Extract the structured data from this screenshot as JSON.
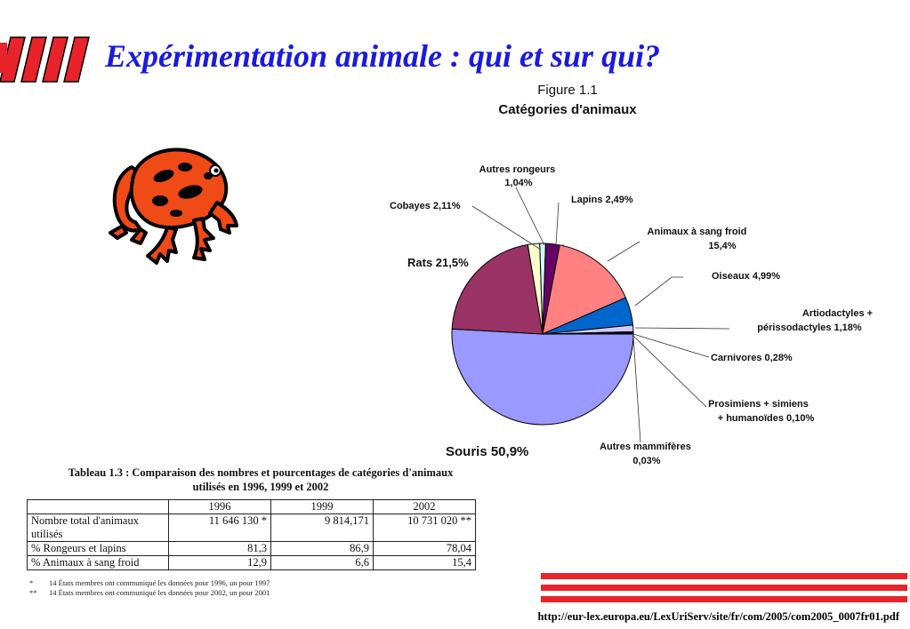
{
  "slide": {
    "title": "Expérimentation animale : qui et sur qui?",
    "source_url": "http://eur-lex.europa.eu/LexUriServ/site/fr/com/2005/com2005_0007fr01.pdf"
  },
  "colors": {
    "title": "#1a1ae0",
    "accent_red": "#e8232a"
  },
  "chart_data": {
    "type": "pie",
    "title": "Figure 1.1",
    "subtitle": "Catégories d'animaux",
    "slices": [
      {
        "label": "Souris 50,9%",
        "value": 50.9,
        "color": "#9999ff"
      },
      {
        "label": "Rats 21,5%",
        "value": 21.5,
        "color": "#993366"
      },
      {
        "label": "Cobayes 2,11%",
        "value": 2.11,
        "color": "#ffffcc"
      },
      {
        "label": "Autres rongeurs 1,04%",
        "value": 1.04,
        "color": "#ccffff"
      },
      {
        "label": "Lapins 2,49%",
        "value": 2.49,
        "color": "#660066"
      },
      {
        "label": "Animaux à sang froid 15,4%",
        "value": 15.4,
        "color": "#ff8080"
      },
      {
        "label": "Oiseaux 4,99%",
        "value": 4.99,
        "color": "#0066cc"
      },
      {
        "label": "Artiodactyles + périssodactyles 1,18%",
        "value": 1.18,
        "color": "#ccccff"
      },
      {
        "label": "Carnivores 0,28%",
        "value": 0.28,
        "color": "#000080"
      },
      {
        "label": "Prosimiens + simiens + humanoïdes 0,10%",
        "value": 0.1,
        "color": "#ff00ff"
      },
      {
        "label": "Autres mammifères 0,03%",
        "value": 0.03,
        "color": "#ffff00"
      }
    ],
    "labels": {
      "souris": "Souris 50,9%",
      "rats": "Rats 21,5%",
      "cobayes": "Cobayes 2,11%",
      "autres_rongeurs": [
        "Autres rongeurs",
        "1,04%"
      ],
      "lapins": "Lapins 2,49%",
      "sang_froid": [
        "Animaux à sang froid",
        "15,4%"
      ],
      "oiseaux": "Oiseaux 4,99%",
      "artiodactyles": [
        "Artiodactyles +",
        "périssodactyles 1,18%"
      ],
      "carnivores": "Carnivores 0,28%",
      "prosimiens": [
        "Prosimiens + simiens",
        "+ humanoïdes 0,10%"
      ],
      "autres_mammiferes": [
        "Autres mammifères",
        "0,03%"
      ]
    }
  },
  "table": {
    "caption_line1": "Tableau 1.3 : Comparaison des nombres et pourcentages de catégories d'animaux",
    "caption_line2": "utilisés en 1996, 1999 et 2002",
    "headers": [
      "",
      "1996",
      "1999",
      "2002"
    ],
    "rows": [
      [
        "Nombre total d'animaux utilisés",
        "11 646 130 *",
        "9 814,171",
        "10 731 020 **"
      ],
      [
        "% Rongeurs et lapins",
        "81,3",
        "86,9",
        "78,04"
      ],
      [
        "% Animaux à sang froid",
        "12,9",
        "6,6",
        "15,4"
      ]
    ],
    "notes": [
      {
        "mark": "*",
        "text": "14 États membres ont communiqué les données pour 1996, un pour 1997"
      },
      {
        "mark": "**",
        "text": "14 États membres ont communiqué les données pour 2002, un pour 2001"
      }
    ]
  }
}
